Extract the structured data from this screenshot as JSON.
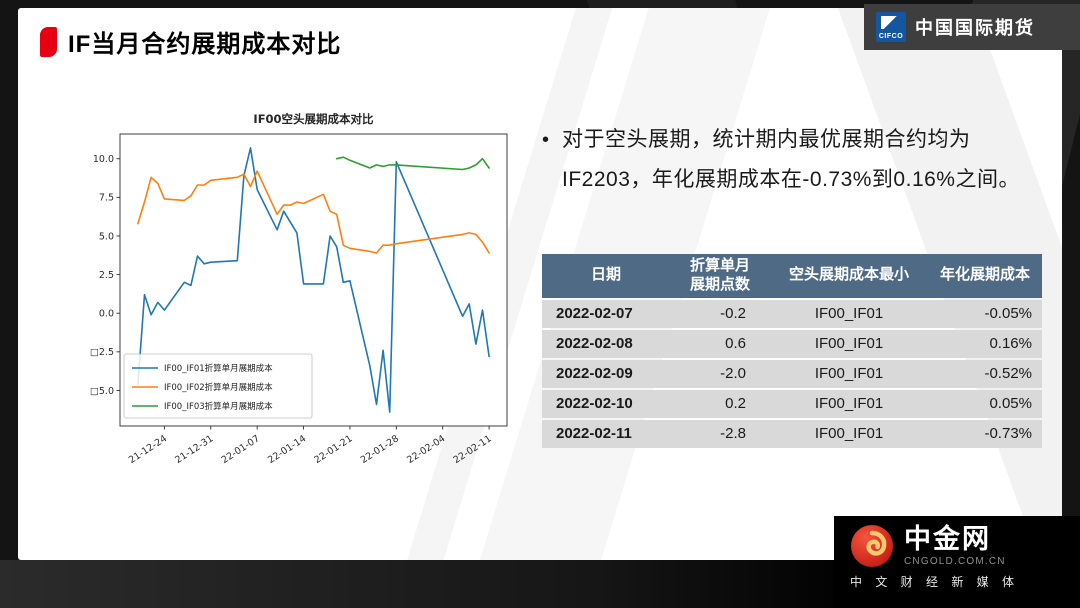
{
  "slide": {
    "title": "IF当月合约展期成本对比"
  },
  "brand": {
    "cifco": {
      "logo_text": "CIFCO",
      "name": "中国国际期货"
    },
    "cngold": {
      "name": "中金网",
      "domain": "CNGOLD.COM.CN",
      "tagline": "中 文 财 经 新 媒 体"
    }
  },
  "bullet": {
    "marker": "•",
    "line1": "对于空头展期，统计期内最优展期合约均为",
    "line2": "IF2203，年化展期成本在-0.73%到0.16%之间。"
  },
  "table": {
    "columns": [
      {
        "lines": [
          "日期"
        ]
      },
      {
        "lines": [
          "折算单月",
          "展期点数"
        ]
      },
      {
        "lines": [
          "空头展期成本最小"
        ]
      },
      {
        "lines": [
          "年化展期成本"
        ]
      }
    ],
    "rows": [
      [
        "2022-02-07",
        "-0.2",
        "IF00_IF01",
        "-0.05%"
      ],
      [
        "2022-02-08",
        "0.6",
        "IF00_IF01",
        "0.16%"
      ],
      [
        "2022-02-09",
        "-2.0",
        "IF00_IF01",
        "-0.52%"
      ],
      [
        "2022-02-10",
        "0.2",
        "IF00_IF01",
        "0.05%"
      ],
      [
        "2022-02-11",
        "-2.8",
        "IF00_IF01",
        "-0.73%"
      ]
    ],
    "colors": {
      "header_bg": "#4e6a84",
      "header_text": "#ffffff",
      "row_bg": "#d9d9d9",
      "row_text": "#1a1a1a"
    }
  },
  "chart_data": {
    "type": "line",
    "title": "IF00空头展期成本对比",
    "x_unit": "trading dates 2021-12-20 to 2022-02-11 (x = days since 2021-12-20)",
    "xlim": [
      -2.7,
      55.7
    ],
    "ylim": [
      -7.3,
      11.6
    ],
    "grid": false,
    "legend_position": "lower left",
    "x_ticks": [
      {
        "v": 4,
        "label": "21-12-24"
      },
      {
        "v": 11,
        "label": "21-12-31"
      },
      {
        "v": 18,
        "label": "22-01-07"
      },
      {
        "v": 25,
        "label": "22-01-14"
      },
      {
        "v": 32,
        "label": "22-01-21"
      },
      {
        "v": 39,
        "label": "22-01-28"
      },
      {
        "v": 46,
        "label": "22-02-04"
      },
      {
        "v": 53,
        "label": "22-02-11"
      }
    ],
    "y_ticks": [
      {
        "v": 10,
        "label": "10.0"
      },
      {
        "v": 7.5,
        "label": "7.5"
      },
      {
        "v": 5,
        "label": "5.0"
      },
      {
        "v": 2.5,
        "label": "2.5"
      },
      {
        "v": 0,
        "label": "0.0"
      },
      {
        "v": -2.5,
        "label": "□2.5"
      },
      {
        "v": -5,
        "label": "□5.0"
      }
    ],
    "series": [
      {
        "name": "IF00_IF01折算单月展期成本",
        "color": "#1f77b4",
        "x": [
          0,
          1,
          2,
          3,
          4,
          7,
          8,
          9,
          10,
          11,
          15,
          16,
          17,
          18,
          21,
          22,
          23,
          24,
          25,
          28,
          29,
          30,
          31,
          32,
          35,
          36,
          37,
          38,
          39,
          49,
          50,
          51,
          52,
          53
        ],
        "values": [
          -4.6,
          1.2,
          -0.1,
          0.7,
          0.2,
          2.0,
          1.8,
          3.7,
          3.2,
          3.3,
          3.4,
          8.9,
          10.7,
          8.0,
          5.4,
          6.6,
          5.9,
          5.2,
          1.9,
          1.9,
          5.0,
          4.3,
          2.0,
          2.1,
          -3.4,
          -5.9,
          -2.4,
          -6.4,
          9.8,
          -0.2,
          0.6,
          -2.0,
          0.2,
          -2.8
        ]
      },
      {
        "name": "IF00_IF02折算单月展期成本",
        "color": "#ff7f0e",
        "x": [
          0,
          1,
          2,
          3,
          4,
          7,
          8,
          9,
          10,
          11,
          15,
          16,
          17,
          18,
          21,
          22,
          23,
          24,
          25,
          28,
          29,
          30,
          31,
          32,
          35,
          36,
          37,
          38,
          39,
          49,
          50,
          51,
          52,
          53
        ],
        "values": [
          5.8,
          7.2,
          8.8,
          8.4,
          7.4,
          7.3,
          7.6,
          8.3,
          8.3,
          8.6,
          8.8,
          9.0,
          8.2,
          9.2,
          6.4,
          7.0,
          7.0,
          7.2,
          7.1,
          7.7,
          6.6,
          6.4,
          4.4,
          4.2,
          4.0,
          3.9,
          4.4,
          4.4,
          4.5,
          5.1,
          5.2,
          5.1,
          4.6,
          3.9
        ]
      },
      {
        "name": "IF00_IF03折算单月展期成本",
        "color": "#2ca02c",
        "x": [
          30,
          31,
          32,
          35,
          36,
          37,
          38,
          39,
          49,
          50,
          51,
          52,
          53
        ],
        "values": [
          10.0,
          10.1,
          9.9,
          9.4,
          9.6,
          9.5,
          9.6,
          9.6,
          9.3,
          9.4,
          9.6,
          10.0,
          9.4
        ]
      }
    ]
  }
}
